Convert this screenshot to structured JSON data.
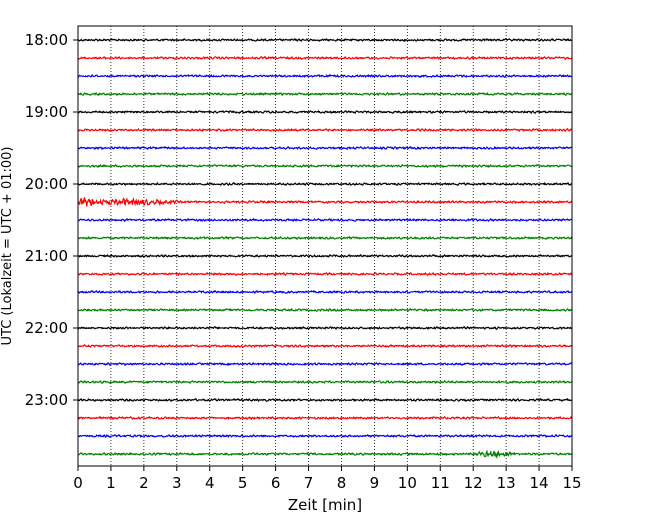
{
  "chart_data": {
    "type": "line",
    "title": "",
    "xlabel": "Zeit  [min]",
    "ylabel": "UTC (Lokalzeit = UTC + 01:00)",
    "xlim": [
      0,
      15
    ],
    "x_ticks": [
      "0",
      "1",
      "2",
      "3",
      "4",
      "5",
      "6",
      "7",
      "8",
      "9",
      "10",
      "11",
      "12",
      "13",
      "14",
      "15"
    ],
    "y_ticks": [
      "18:00",
      "19:00",
      "20:00",
      "21:00",
      "22:00",
      "23:00"
    ],
    "grid": "vertical dotted lines at each minute",
    "trace_interval_min": 15,
    "start_time": "18:00",
    "colors": [
      "#000000",
      "#ff0000",
      "#0000ff",
      "#008000"
    ],
    "traces": [
      {
        "start": "18:00",
        "color": "#000000"
      },
      {
        "start": "18:15",
        "color": "#ff0000"
      },
      {
        "start": "18:30",
        "color": "#0000ff"
      },
      {
        "start": "18:45",
        "color": "#008000"
      },
      {
        "start": "19:00",
        "color": "#000000"
      },
      {
        "start": "19:15",
        "color": "#ff0000"
      },
      {
        "start": "19:30",
        "color": "#0000ff"
      },
      {
        "start": "19:45",
        "color": "#008000"
      },
      {
        "start": "20:00",
        "color": "#000000"
      },
      {
        "start": "20:15",
        "color": "#ff0000",
        "event": {
          "from": 0.0,
          "to": 3.0
        }
      },
      {
        "start": "20:30",
        "color": "#0000ff"
      },
      {
        "start": "20:45",
        "color": "#008000"
      },
      {
        "start": "21:00",
        "color": "#000000"
      },
      {
        "start": "21:15",
        "color": "#ff0000"
      },
      {
        "start": "21:30",
        "color": "#0000ff"
      },
      {
        "start": "21:45",
        "color": "#008000"
      },
      {
        "start": "22:00",
        "color": "#000000"
      },
      {
        "start": "22:15",
        "color": "#ff0000"
      },
      {
        "start": "22:30",
        "color": "#0000ff"
      },
      {
        "start": "22:45",
        "color": "#008000"
      },
      {
        "start": "23:00",
        "color": "#000000"
      },
      {
        "start": "23:15",
        "color": "#ff0000"
      },
      {
        "start": "23:30",
        "color": "#0000ff"
      },
      {
        "start": "23:45",
        "color": "#008000",
        "event": {
          "from": 11.9,
          "to": 13.3
        }
      }
    ]
  }
}
